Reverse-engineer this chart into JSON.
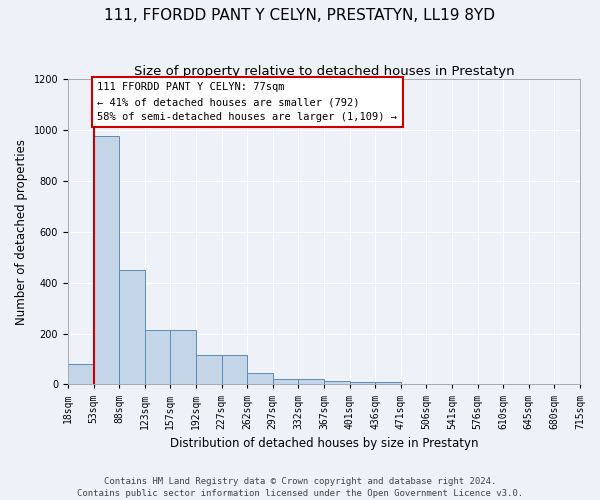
{
  "title": "111, FFORDD PANT Y CELYN, PRESTATYN, LL19 8YD",
  "subtitle": "Size of property relative to detached houses in Prestatyn",
  "xlabel": "Distribution of detached houses by size in Prestatyn",
  "ylabel": "Number of detached properties",
  "bin_labels": [
    "18sqm",
    "53sqm",
    "88sqm",
    "123sqm",
    "157sqm",
    "192sqm",
    "227sqm",
    "262sqm",
    "297sqm",
    "332sqm",
    "367sqm",
    "401sqm",
    "436sqm",
    "471sqm",
    "506sqm",
    "541sqm",
    "576sqm",
    "610sqm",
    "645sqm",
    "680sqm",
    "715sqm"
  ],
  "bar_heights": [
    80,
    975,
    450,
    215,
    215,
    115,
    115,
    45,
    20,
    20,
    15,
    10,
    10,
    0,
    0,
    0,
    0,
    0,
    0,
    0
  ],
  "bar_color": "#c5d5e8",
  "bar_edge_color": "#5b8db8",
  "background_color": "#eef2f8",
  "grid_color": "#ffffff",
  "property_line_color": "#cc0000",
  "property_line_bar_index": 0.5,
  "annotation_text": "111 FFORDD PANT Y CELYN: 77sqm\n← 41% of detached houses are smaller (792)\n58% of semi-detached houses are larger (1,109) →",
  "annotation_box_color": "#ffffff",
  "annotation_box_edge": "#cc0000",
  "ylim": [
    0,
    1200
  ],
  "yticks": [
    0,
    200,
    400,
    600,
    800,
    1000,
    1200
  ],
  "footer_text": "Contains HM Land Registry data © Crown copyright and database right 2024.\nContains public sector information licensed under the Open Government Licence v3.0.",
  "title_fontsize": 11,
  "subtitle_fontsize": 9.5,
  "axis_label_fontsize": 8.5,
  "tick_fontsize": 7,
  "annotation_fontsize": 7.5,
  "footer_fontsize": 6.5
}
